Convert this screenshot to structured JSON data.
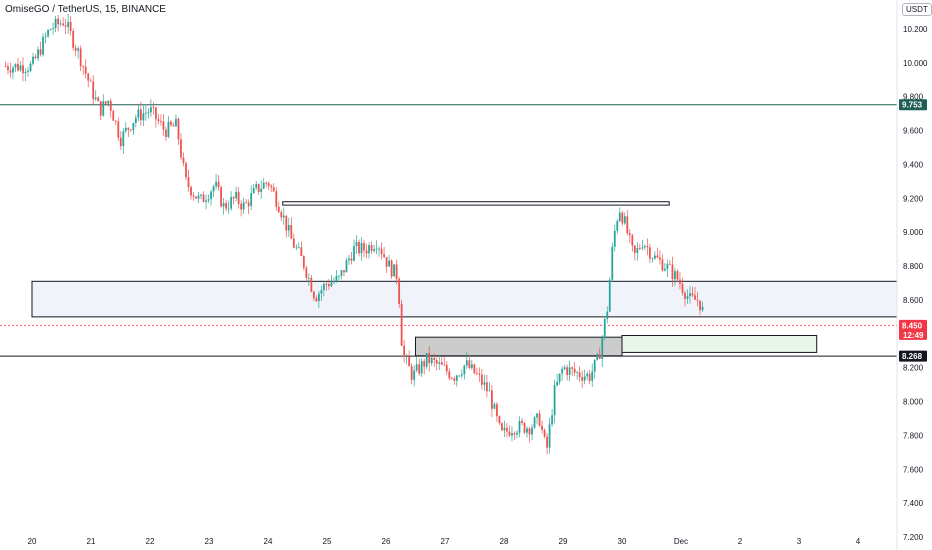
{
  "header": {
    "title": "OmiseGO / TetherUS, 15, BINANCE",
    "currency": "USDT"
  },
  "chart_data": {
    "type": "candlestick",
    "symbol": "OmiseGO / TetherUS",
    "interval": "15",
    "exchange": "BINANCE",
    "ylim": [
      7.16,
      10.4
    ],
    "y_ticks": [
      "10.200",
      "10.000",
      "9.800",
      "9.600",
      "9.400",
      "9.200",
      "9.000",
      "8.800",
      "8.600",
      "8.400",
      "8.200",
      "8.000",
      "7.800",
      "7.600",
      "7.400",
      "7.200"
    ],
    "x_ticks": [
      "20",
      "21",
      "22",
      "23",
      "24",
      "25",
      "26",
      "27",
      "28",
      "29",
      "30",
      "Dec",
      "2",
      "3",
      "4"
    ],
    "price_path": [
      [
        0.0,
        9.98
      ],
      [
        0.3,
        10.2
      ],
      [
        0.55,
        10.25
      ],
      [
        0.8,
        10.05
      ],
      [
        1.0,
        9.85
      ],
      [
        1.15,
        9.72
      ],
      [
        1.3,
        9.78
      ],
      [
        1.5,
        9.55
      ],
      [
        1.75,
        9.68
      ],
      [
        2.0,
        9.72
      ],
      [
        2.25,
        9.6
      ],
      [
        2.45,
        9.63
      ],
      [
        2.6,
        9.3
      ],
      [
        2.85,
        9.18
      ],
      [
        3.1,
        9.28
      ],
      [
        3.25,
        9.15
      ],
      [
        3.45,
        9.2
      ],
      [
        3.6,
        9.15
      ],
      [
        3.8,
        9.25
      ],
      [
        4.0,
        9.3
      ],
      [
        4.2,
        9.15
      ],
      [
        4.4,
        8.95
      ],
      [
        4.6,
        8.82
      ],
      [
        4.8,
        8.62
      ],
      [
        5.0,
        8.7
      ],
      [
        5.2,
        8.72
      ],
      [
        5.45,
        8.9
      ],
      [
        5.65,
        8.9
      ],
      [
        5.85,
        8.95
      ],
      [
        6.05,
        8.8
      ],
      [
        6.2,
        8.74
      ],
      [
        6.28,
        8.28
      ],
      [
        6.45,
        8.15
      ],
      [
        6.7,
        8.25
      ],
      [
        6.95,
        8.2
      ],
      [
        7.15,
        8.15
      ],
      [
        7.35,
        8.22
      ],
      [
        7.55,
        8.15
      ],
      [
        7.75,
        8.05
      ],
      [
        7.95,
        7.8
      ],
      [
        8.15,
        7.85
      ],
      [
        8.45,
        7.85
      ],
      [
        8.6,
        7.9
      ],
      [
        8.72,
        7.7
      ],
      [
        8.85,
        8.05
      ],
      [
        9.0,
        8.2
      ],
      [
        9.2,
        8.17
      ],
      [
        9.45,
        8.15
      ],
      [
        9.6,
        8.25
      ],
      [
        9.75,
        8.55
      ],
      [
        9.85,
        8.95
      ],
      [
        9.95,
        9.15
      ],
      [
        10.05,
        9.05
      ],
      [
        10.2,
        8.85
      ],
      [
        10.35,
        8.95
      ],
      [
        10.55,
        8.85
      ],
      [
        10.75,
        8.8
      ],
      [
        10.95,
        8.72
      ],
      [
        11.15,
        8.6
      ],
      [
        11.3,
        8.6
      ],
      [
        11.4,
        8.5
      ]
    ],
    "horizontal_lines": [
      {
        "price": 9.753,
        "color": "#1e5e54",
        "label": "9.753"
      },
      {
        "price": 8.268,
        "color": "#131722",
        "label": "8.268"
      }
    ],
    "current_price": {
      "price": 8.45,
      "label": "8.450",
      "countdown": "12:49",
      "color": "#f23645"
    },
    "zones": [
      {
        "name": "gray-band",
        "from_day": 0.0,
        "to_day": 15.2,
        "low": 8.5,
        "high": 8.71,
        "fill": "#f0f3fa",
        "stroke": "#131722"
      },
      {
        "name": "upper-rectangle",
        "from_day": 4.25,
        "to_day": 10.8,
        "low": 9.16,
        "high": 9.18,
        "fill": "#ffffff",
        "stroke": "#131722"
      },
      {
        "name": "gray-demand-block",
        "from_day": 6.5,
        "to_day": 10.0,
        "low": 8.27,
        "high": 8.38,
        "fill": "#cccccc",
        "stroke": "#131722"
      },
      {
        "name": "green-box",
        "from_day": 10.0,
        "to_day": 13.3,
        "low": 8.29,
        "high": 8.39,
        "fill": "#e8f5e9",
        "stroke": "#131722"
      }
    ],
    "colors": {
      "up": "#26a69a",
      "down": "#ef5350"
    }
  }
}
